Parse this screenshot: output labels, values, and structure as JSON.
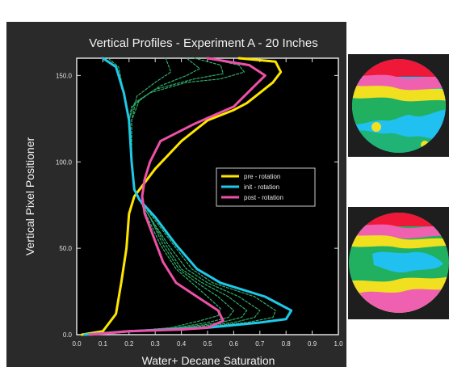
{
  "chart_data": {
    "type": "line",
    "title": "Vertical Profiles - Experiment A - 20 Inches",
    "xlabel": "Water+ Decane Saturation",
    "ylabel": "Vertical Pixel Positioner",
    "xlim": [
      0.0,
      1.0
    ],
    "ylim": [
      0.0,
      160.0
    ],
    "x_ticks": [
      "0.0",
      "0.1",
      "0.2",
      "0.3",
      "0.4",
      "0.5",
      "0.6",
      "0.7",
      "0.8",
      "0.9",
      "1.0"
    ],
    "y_ticks": [
      "0.0",
      "50.0",
      "100.0",
      "150.0"
    ],
    "grid": false,
    "legend_position": "right-center",
    "axis": "y",
    "series": [
      {
        "name": "pre - rotation",
        "color": "#ffe600",
        "points": [
          [
            0.02,
            0
          ],
          [
            0.1,
            2
          ],
          [
            0.15,
            12
          ],
          [
            0.17,
            30
          ],
          [
            0.19,
            50
          ],
          [
            0.2,
            70
          ],
          [
            0.22,
            80
          ],
          [
            0.3,
            96
          ],
          [
            0.4,
            112
          ],
          [
            0.5,
            124
          ],
          [
            0.6,
            130
          ],
          [
            0.65,
            134
          ],
          [
            0.7,
            140
          ],
          [
            0.75,
            146
          ],
          [
            0.78,
            152
          ],
          [
            0.76,
            158
          ],
          [
            0.62,
            160
          ]
        ]
      },
      {
        "name": "init - rotation",
        "color": "#20c8e8",
        "points": [
          [
            0.03,
            0
          ],
          [
            0.2,
            2
          ],
          [
            0.5,
            4
          ],
          [
            0.7,
            7
          ],
          [
            0.8,
            9
          ],
          [
            0.82,
            14
          ],
          [
            0.72,
            22
          ],
          [
            0.55,
            30
          ],
          [
            0.46,
            38
          ],
          [
            0.38,
            52
          ],
          [
            0.3,
            68
          ],
          [
            0.24,
            78
          ],
          [
            0.22,
            84
          ],
          [
            0.21,
            100
          ],
          [
            0.2,
            124
          ],
          [
            0.18,
            140
          ],
          [
            0.15,
            155
          ],
          [
            0.1,
            160
          ]
        ]
      },
      {
        "name": "post - rotation",
        "color": "#ee50a8",
        "points": [
          [
            0.05,
            0
          ],
          [
            0.2,
            2
          ],
          [
            0.4,
            3
          ],
          [
            0.5,
            4
          ],
          [
            0.56,
            8
          ],
          [
            0.54,
            14
          ],
          [
            0.46,
            22
          ],
          [
            0.38,
            30
          ],
          [
            0.33,
            42
          ],
          [
            0.29,
            58
          ],
          [
            0.26,
            70
          ],
          [
            0.25,
            80
          ],
          [
            0.26,
            90
          ],
          [
            0.28,
            100
          ],
          [
            0.32,
            112
          ],
          [
            0.45,
            122
          ],
          [
            0.6,
            132
          ],
          [
            0.68,
            144
          ],
          [
            0.72,
            150
          ],
          [
            0.66,
            156
          ],
          [
            0.5,
            160
          ]
        ]
      },
      {
        "name": "",
        "color": "#2fae6a",
        "points": [
          [
            0.04,
            0
          ],
          [
            0.2,
            2
          ],
          [
            0.45,
            4
          ],
          [
            0.65,
            7
          ],
          [
            0.75,
            10
          ],
          [
            0.76,
            14
          ],
          [
            0.68,
            22
          ],
          [
            0.52,
            30
          ],
          [
            0.44,
            38
          ],
          [
            0.37,
            52
          ],
          [
            0.29,
            68
          ],
          [
            0.24,
            78
          ],
          [
            0.22,
            84
          ],
          [
            0.21,
            100
          ],
          [
            0.2,
            124
          ],
          [
            0.18,
            140
          ],
          [
            0.16,
            155
          ],
          [
            0.12,
            160
          ]
        ]
      },
      {
        "name": "",
        "color": "#2fae6a",
        "points": [
          [
            0.05,
            0
          ],
          [
            0.2,
            2
          ],
          [
            0.42,
            4
          ],
          [
            0.6,
            7
          ],
          [
            0.68,
            10
          ],
          [
            0.7,
            14
          ],
          [
            0.62,
            22
          ],
          [
            0.5,
            30
          ],
          [
            0.42,
            38
          ],
          [
            0.35,
            52
          ],
          [
            0.28,
            68
          ],
          [
            0.24,
            78
          ],
          [
            0.22,
            84
          ],
          [
            0.21,
            100
          ],
          [
            0.2,
            124
          ],
          [
            0.21,
            132
          ],
          [
            0.28,
            140
          ],
          [
            0.42,
            146
          ],
          [
            0.55,
            148
          ],
          [
            0.64,
            152
          ],
          [
            0.62,
            156
          ],
          [
            0.5,
            160
          ]
        ]
      },
      {
        "name": "",
        "color": "#2fae6a",
        "points": [
          [
            0.06,
            0
          ],
          [
            0.2,
            2
          ],
          [
            0.4,
            4
          ],
          [
            0.55,
            7
          ],
          [
            0.63,
            10
          ],
          [
            0.65,
            14
          ],
          [
            0.58,
            22
          ],
          [
            0.48,
            30
          ],
          [
            0.4,
            38
          ],
          [
            0.34,
            52
          ],
          [
            0.28,
            68
          ],
          [
            0.24,
            78
          ],
          [
            0.22,
            84
          ],
          [
            0.21,
            100
          ],
          [
            0.2,
            124
          ],
          [
            0.22,
            134
          ],
          [
            0.3,
            142
          ],
          [
            0.45,
            148
          ],
          [
            0.56,
            151
          ],
          [
            0.55,
            156
          ],
          [
            0.45,
            160
          ]
        ]
      },
      {
        "name": "",
        "color": "#2fae6a",
        "points": [
          [
            0.07,
            0
          ],
          [
            0.2,
            2
          ],
          [
            0.38,
            4
          ],
          [
            0.5,
            7
          ],
          [
            0.58,
            10
          ],
          [
            0.6,
            14
          ],
          [
            0.54,
            22
          ],
          [
            0.46,
            30
          ],
          [
            0.39,
            38
          ],
          [
            0.33,
            52
          ],
          [
            0.28,
            68
          ],
          [
            0.24,
            78
          ],
          [
            0.22,
            84
          ],
          [
            0.21,
            100
          ],
          [
            0.21,
            124
          ],
          [
            0.24,
            136
          ],
          [
            0.32,
            144
          ],
          [
            0.42,
            150
          ],
          [
            0.47,
            154
          ],
          [
            0.42,
            160
          ]
        ]
      },
      {
        "name": "",
        "color": "#2fae6a",
        "points": [
          [
            0.08,
            0
          ],
          [
            0.2,
            2
          ],
          [
            0.36,
            4
          ],
          [
            0.47,
            8
          ],
          [
            0.54,
            11
          ],
          [
            0.55,
            15
          ],
          [
            0.5,
            22
          ],
          [
            0.44,
            30
          ],
          [
            0.38,
            38
          ],
          [
            0.32,
            52
          ],
          [
            0.27,
            68
          ],
          [
            0.24,
            78
          ],
          [
            0.22,
            84
          ],
          [
            0.21,
            100
          ],
          [
            0.21,
            124
          ],
          [
            0.23,
            138
          ],
          [
            0.3,
            146
          ],
          [
            0.36,
            152
          ],
          [
            0.34,
            160
          ]
        ]
      }
    ]
  },
  "images": [
    {
      "name": "top-saturation-map",
      "colors": [
        "#f01838",
        "#f060b0",
        "#f0e020",
        "#20b060",
        "#20c0f0"
      ]
    },
    {
      "name": "bottom-saturation-map",
      "colors": [
        "#f01838",
        "#f060b0",
        "#f0e020",
        "#20b060",
        "#20c0f0"
      ]
    }
  ]
}
